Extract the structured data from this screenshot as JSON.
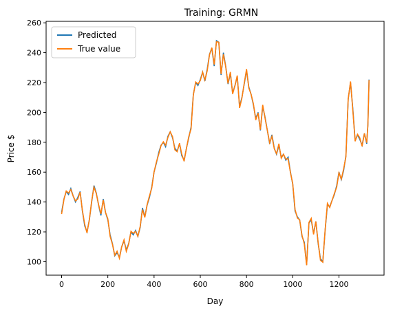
{
  "chart_data": {
    "type": "line",
    "title": "Training: GRMN",
    "xlabel": "Day",
    "ylabel": "Price $",
    "xlim": [
      -67,
      1395
    ],
    "ylim": [
      91,
      261
    ],
    "xticks": [
      0,
      200,
      400,
      600,
      800,
      1000,
      1200
    ],
    "yticks": [
      100,
      120,
      140,
      160,
      180,
      200,
      220,
      240,
      260
    ],
    "grid": false,
    "legend_position": "top-left",
    "colors": {
      "Predicted": "#1f77b4",
      "True value": "#ff7f0e"
    },
    "series": [
      {
        "name": "Predicted",
        "x": [
          0,
          10,
          20,
          30,
          40,
          50,
          60,
          70,
          80,
          90,
          100,
          110,
          120,
          130,
          140,
          150,
          160,
          170,
          180,
          190,
          200,
          210,
          220,
          230,
          240,
          250,
          260,
          270,
          280,
          290,
          300,
          310,
          320,
          330,
          340,
          350,
          360,
          370,
          380,
          390,
          400,
          410,
          420,
          430,
          440,
          450,
          460,
          470,
          480,
          490,
          500,
          510,
          520,
          530,
          540,
          550,
          560,
          570,
          580,
          590,
          600,
          610,
          620,
          630,
          640,
          650,
          660,
          670,
          680,
          690,
          700,
          710,
          720,
          730,
          740,
          750,
          760,
          770,
          780,
          790,
          800,
          810,
          820,
          830,
          840,
          850,
          860,
          870,
          880,
          890,
          900,
          910,
          920,
          930,
          940,
          950,
          960,
          970,
          980,
          990,
          1000,
          1010,
          1020,
          1030,
          1040,
          1050,
          1060,
          1070,
          1080,
          1090,
          1100,
          1110,
          1120,
          1130,
          1140,
          1150,
          1160,
          1170,
          1180,
          1190,
          1200,
          1210,
          1220,
          1230,
          1240,
          1250,
          1260,
          1270,
          1280,
          1290,
          1300,
          1310,
          1320,
          1325,
          1330
        ],
        "y": [
          133,
          142,
          147,
          145,
          149,
          144,
          140,
          143,
          147,
          134,
          124,
          120,
          128,
          140,
          151,
          146,
          138,
          131,
          142,
          133,
          128,
          118,
          112,
          104,
          106,
          103,
          110,
          114,
          108,
          112,
          120,
          118,
          121,
          117,
          123,
          136,
          130,
          138,
          143,
          150,
          160,
          166,
          173,
          178,
          180,
          177,
          184,
          187,
          183,
          176,
          174,
          179,
          171,
          168,
          176,
          183,
          190,
          212,
          220,
          218,
          222,
          227,
          221,
          229,
          239,
          243,
          231,
          248,
          247,
          225,
          240,
          231,
          219,
          226,
          213,
          218,
          224,
          204,
          210,
          219,
          228,
          217,
          212,
          205,
          196,
          200,
          188,
          204,
          197,
          188,
          179,
          185,
          176,
          172,
          178,
          170,
          172,
          168,
          170,
          160,
          152,
          134,
          130,
          128,
          117,
          113,
          98,
          126,
          128,
          119,
          127,
          112,
          102,
          100,
          121,
          138,
          137,
          141,
          145,
          151,
          160,
          155,
          161,
          171,
          209,
          220,
          202,
          181,
          185,
          182,
          178,
          186,
          179,
          192,
          222
        ],
        "x_end": 1330
      },
      {
        "name": "True value",
        "note_points": "nearly identical to Predicted"
      }
    ]
  }
}
